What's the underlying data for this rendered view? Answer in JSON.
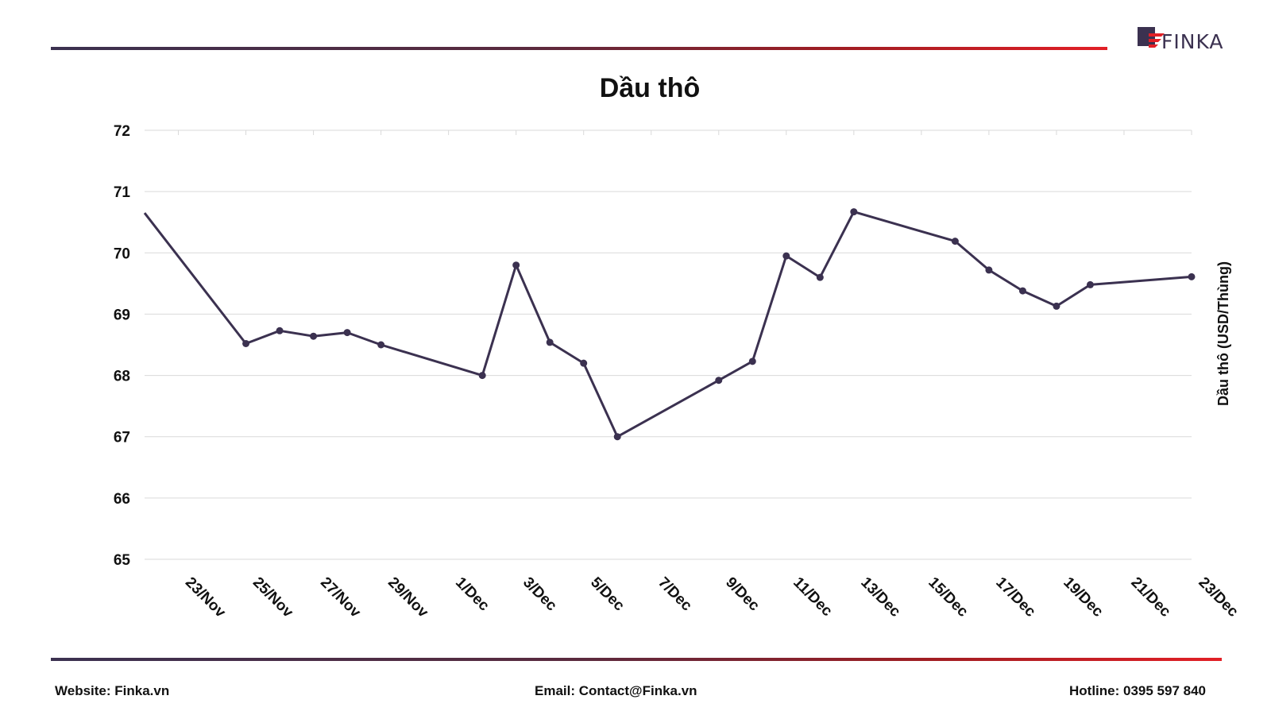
{
  "brand": {
    "logo_text": "FINKA",
    "colors": {
      "dark": "#3b3150",
      "red": "#e21f26",
      "line": "#3b3150"
    }
  },
  "footer": {
    "website": "Website: Finka.vn",
    "email": "Email: Contact@Finka.vn",
    "hotline": "Hotline: 0395 597 840"
  },
  "chart_data": {
    "type": "line",
    "title": "Dầu thô",
    "xlabel": "",
    "ylabel": "Dầu thô (USD/Thùng)",
    "ylim": [
      65,
      72
    ],
    "y_ticks": [
      "65",
      "66",
      "67",
      "68",
      "69",
      "70",
      "71",
      "72"
    ],
    "x_ticks": [
      "23/Nov",
      "25/Nov",
      "27/Nov",
      "29/Nov",
      "1/Dec",
      "3/Dec",
      "5/Dec",
      "7/Dec",
      "9/Dec",
      "11/Dec",
      "13/Dec",
      "15/Dec",
      "17/Dec",
      "19/Dec",
      "21/Dec",
      "23/Dec"
    ],
    "xlim": [
      "2024-11-22",
      "2024-12-23"
    ],
    "grid": true,
    "series": [
      {
        "color": "#3b3150",
        "points": [
          {
            "x": "2024-11-22",
            "y": 70.65
          },
          {
            "x": "2024-11-25",
            "y": 68.52
          },
          {
            "x": "2024-11-26",
            "y": 68.73
          },
          {
            "x": "2024-11-27",
            "y": 68.64
          },
          {
            "x": "2024-11-28",
            "y": 68.7
          },
          {
            "x": "2024-11-29",
            "y": 68.5
          },
          {
            "x": "2024-12-02",
            "y": 68.0
          },
          {
            "x": "2024-12-03",
            "y": 69.8
          },
          {
            "x": "2024-12-04",
            "y": 68.54
          },
          {
            "x": "2024-12-05",
            "y": 68.2
          },
          {
            "x": "2024-12-06",
            "y": 67.0
          },
          {
            "x": "2024-12-09",
            "y": 67.92
          },
          {
            "x": "2024-12-10",
            "y": 68.23
          },
          {
            "x": "2024-12-11",
            "y": 69.95
          },
          {
            "x": "2024-12-12",
            "y": 69.6
          },
          {
            "x": "2024-12-13",
            "y": 70.67
          },
          {
            "x": "2024-12-16",
            "y": 70.19
          },
          {
            "x": "2024-12-17",
            "y": 69.72
          },
          {
            "x": "2024-12-18",
            "y": 69.38
          },
          {
            "x": "2024-12-19",
            "y": 69.13
          },
          {
            "x": "2024-12-20",
            "y": 69.48
          },
          {
            "x": "2024-12-23",
            "y": 69.61
          }
        ]
      }
    ]
  }
}
